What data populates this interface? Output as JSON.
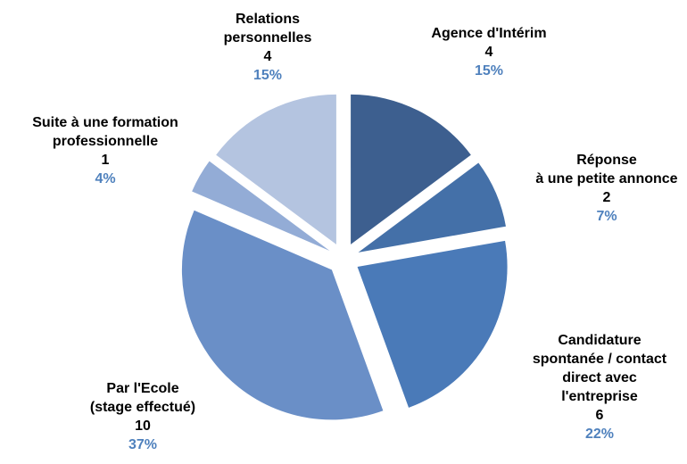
{
  "chart_data": {
    "type": "pie",
    "categories": [
      [
        "Agence d'Intérim"
      ],
      [
        "Réponse",
        "à une petite annonce"
      ],
      [
        "Candidature",
        "spontanée / contact",
        "direct avec",
        "l'entreprise"
      ],
      [
        "Par l'Ecole",
        "(stage effectué)"
      ],
      [
        "Suite à une formation",
        "professionnelle"
      ],
      [
        "Relations",
        "personnelles"
      ]
    ],
    "values": [
      4,
      2,
      6,
      10,
      1,
      4
    ],
    "percentages": [
      15,
      7,
      22,
      37,
      4,
      15
    ],
    "percentage_labels": [
      "15%",
      "7%",
      "22%",
      "37%",
      "4%",
      "15%"
    ],
    "colors": [
      "#3d5f8f",
      "#4470a8",
      "#4a7ab8",
      "#6a8fc7",
      "#93acd6",
      "#b4c4e0"
    ],
    "exploded": true
  }
}
